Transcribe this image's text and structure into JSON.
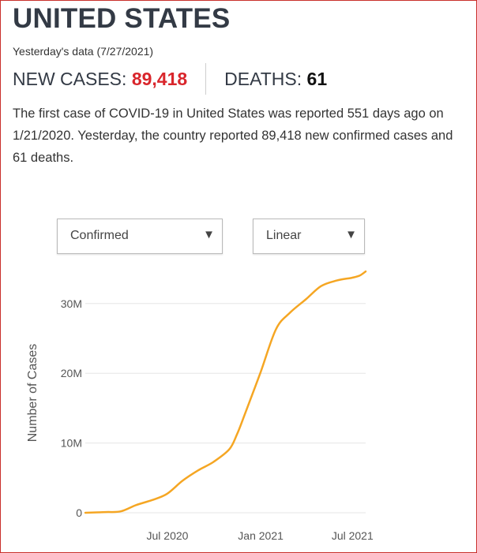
{
  "header": {
    "title": "UNITED STATES",
    "date_line": "Yesterday's data (7/27/2021)"
  },
  "stats": {
    "new_cases_label": "NEW CASES:",
    "new_cases_value": "89,418",
    "deaths_label": "DEATHS:",
    "deaths_value": "61"
  },
  "summary": {
    "p1": "The first case of ",
    "disease": "COVID-19",
    "p2": " in ",
    "country": "United States",
    "p3": " was reported 551 days ago on 1/21/2020. Yesterday, the country reported 89,418 new confirmed cases and 61 deaths."
  },
  "controls": {
    "metric_select": "Confirmed",
    "scale_select": "Linear"
  },
  "colors": {
    "line": "#f5a623",
    "accent_red": "#d9262c",
    "border": "#c9302c"
  },
  "icons": {
    "dropdown": "triangle-down-icon"
  },
  "chart_data": {
    "type": "line",
    "title": "",
    "xlabel": "",
    "ylabel": "Number of Cases",
    "x_tick_labels": [
      {
        "date": "2020-07-01",
        "label": "Jul 2020"
      },
      {
        "date": "2021-01-01",
        "label": "Jan 2021"
      },
      {
        "date": "2021-07-01",
        "label": "Jul 2021"
      }
    ],
    "y_ticks": [
      {
        "value": 0,
        "label": "0"
      },
      {
        "value": 10000000,
        "label": "10M"
      },
      {
        "value": 20000000,
        "label": "20M"
      },
      {
        "value": 30000000,
        "label": "30M"
      }
    ],
    "xlim": [
      "2020-01-21",
      "2021-07-27"
    ],
    "ylim": [
      0,
      34500000
    ],
    "grid": true,
    "legend": "none",
    "series": [
      {
        "x": [
          "2020-01-21",
          "2020-03-01",
          "2020-03-31",
          "2020-04-30",
          "2020-05-31",
          "2020-06-30",
          "2020-07-31",
          "2020-08-31",
          "2020-09-30",
          "2020-10-31",
          "2020-11-15",
          "2020-11-30",
          "2020-12-31",
          "2021-01-31",
          "2021-02-28",
          "2021-03-31",
          "2021-04-30",
          "2021-05-31",
          "2021-06-30",
          "2021-07-15",
          "2021-07-27"
        ],
        "values": [
          0,
          100000,
          200000,
          1100000,
          1800000,
          2700000,
          4600000,
          6100000,
          7300000,
          9100000,
          11200000,
          14000000,
          20000000,
          26300000,
          28700000,
          30600000,
          32500000,
          33300000,
          33700000,
          34000000,
          34600000
        ]
      }
    ]
  }
}
